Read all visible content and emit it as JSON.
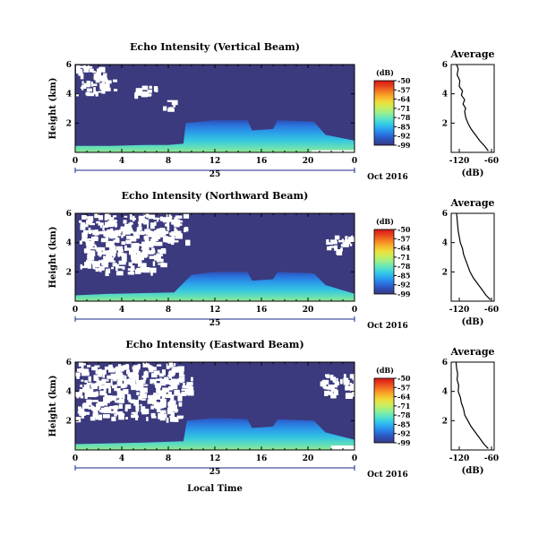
{
  "figure": {
    "bottom_xlabel": "Local Time",
    "date_label": "Oct 2016",
    "day_label": "25",
    "units_label": "(dB)",
    "avg_title": "Average",
    "avg_xlabel": "(dB)"
  },
  "colormap": [
    "#3b3a7e",
    "#2d4fb7",
    "#2a74e0",
    "#2aa2f0",
    "#35cde6",
    "#5fe6c0",
    "#98f08f",
    "#c9ee5e",
    "#eede3a",
    "#f7b02a",
    "#f57a22",
    "#e8431c",
    "#d01818"
  ],
  "chart_data": [
    {
      "type": "heatmap",
      "title": "Echo Intensity (Vertical Beam)",
      "ylabel": "Height (km)",
      "x_ticks": [
        "0",
        "4",
        "8",
        "12",
        "16",
        "20",
        "0"
      ],
      "y_ticks": [
        "2",
        "4",
        "6"
      ],
      "xlim": [
        0,
        24
      ],
      "ylim": [
        0,
        6
      ],
      "colorbar": {
        "ticks": [
          "-50",
          "-57",
          "-64",
          "-71",
          "-78",
          "-85",
          "-92",
          "-99"
        ],
        "range": [
          -99,
          -50
        ]
      },
      "gaps_top": [
        [
          0.0,
          2.5,
          4.0,
          6.0
        ],
        [
          2.2,
          3.5,
          4.3,
          5.0
        ],
        [
          5.0,
          7.5,
          4.0,
          4.6
        ],
        [
          7.5,
          8.5,
          3.0,
          3.6
        ]
      ],
      "gaps_bottom": [
        [
          20.3,
          24.0,
          0.0,
          0.15
        ]
      ],
      "echo_profile": [
        [
          0,
          0.45
        ],
        [
          3,
          0.45
        ],
        [
          6,
          0.5
        ],
        [
          8,
          0.5
        ],
        [
          9.3,
          0.6
        ],
        [
          9.5,
          2.0
        ],
        [
          12,
          2.2
        ],
        [
          14.8,
          2.2
        ],
        [
          15.2,
          1.5
        ],
        [
          17.0,
          1.6
        ],
        [
          17.4,
          2.2
        ],
        [
          20.5,
          2.1
        ],
        [
          21.5,
          1.2
        ],
        [
          24,
          0.8
        ]
      ],
      "avg_profile": {
        "x_ticks": [
          "-120",
          "-60"
        ],
        "y_ticks": [
          "2",
          "4",
          "6"
        ],
        "xlim": [
          -135,
          -55
        ],
        "ylim": [
          0,
          6
        ],
        "points": [
          [
            -66,
            0.1
          ],
          [
            -72,
            0.4
          ],
          [
            -82,
            0.8
          ],
          [
            -90,
            1.2
          ],
          [
            -98,
            1.6
          ],
          [
            -104,
            2.0
          ],
          [
            -108,
            2.4
          ],
          [
            -110,
            2.8
          ],
          [
            -108,
            3.0
          ],
          [
            -113,
            3.3
          ],
          [
            -110,
            3.6
          ],
          [
            -116,
            3.9
          ],
          [
            -114,
            4.2
          ],
          [
            -120,
            4.5
          ],
          [
            -119,
            4.9
          ],
          [
            -124,
            5.3
          ],
          [
            -122,
            5.7
          ],
          [
            -125,
            6.0
          ]
        ]
      }
    },
    {
      "type": "heatmap",
      "title": "Echo Intensity (Northward Beam)",
      "ylabel": "Height (km)",
      "x_ticks": [
        "0",
        "4",
        "8",
        "12",
        "16",
        "20",
        "0"
      ],
      "y_ticks": [
        "2",
        "4",
        "6"
      ],
      "xlim": [
        0,
        24
      ],
      "ylim": [
        0,
        6
      ],
      "colorbar": {
        "ticks": [
          "-50",
          "-57",
          "-64",
          "-71",
          "-78",
          "-85",
          "-92",
          "-99"
        ],
        "range": [
          -99,
          -50
        ]
      },
      "gaps_top": [
        [
          0.3,
          7.5,
          2.0,
          6.0
        ],
        [
          7.5,
          9.5,
          4.0,
          6.0
        ],
        [
          21.5,
          24.0,
          3.5,
          4.5
        ]
      ],
      "gaps_bottom": [],
      "echo_profile": [
        [
          0,
          0.4
        ],
        [
          3,
          0.5
        ],
        [
          6,
          0.55
        ],
        [
          8.5,
          0.6
        ],
        [
          10,
          1.8
        ],
        [
          12,
          2.0
        ],
        [
          14.8,
          2.0
        ],
        [
          15.2,
          1.4
        ],
        [
          17.0,
          1.5
        ],
        [
          17.4,
          2.0
        ],
        [
          20.5,
          1.9
        ],
        [
          21.5,
          1.1
        ],
        [
          24,
          0.5
        ]
      ],
      "avg_profile": {
        "x_ticks": [
          "-120",
          "-60"
        ],
        "y_ticks": [
          "2",
          "4",
          "6"
        ],
        "xlim": [
          -135,
          -55
        ],
        "ylim": [
          0,
          6
        ],
        "points": [
          [
            -62,
            0.1
          ],
          [
            -70,
            0.4
          ],
          [
            -78,
            0.8
          ],
          [
            -86,
            1.2
          ],
          [
            -94,
            1.6
          ],
          [
            -100,
            2.0
          ],
          [
            -104,
            2.4
          ],
          [
            -108,
            2.8
          ],
          [
            -112,
            3.2
          ],
          [
            -114,
            3.6
          ],
          [
            -118,
            4.0
          ],
          [
            -120,
            4.4
          ],
          [
            -122,
            4.8
          ],
          [
            -123,
            5.2
          ],
          [
            -124,
            5.6
          ],
          [
            -125,
            6.0
          ]
        ]
      }
    },
    {
      "type": "heatmap",
      "title": "Echo Intensity (Eastward Beam)",
      "ylabel": "Height (km)",
      "x_ticks": [
        "0",
        "4",
        "8",
        "12",
        "16",
        "20",
        "0"
      ],
      "y_ticks": [
        "2",
        "4",
        "6"
      ],
      "xlim": [
        0,
        24
      ],
      "ylim": [
        0,
        6
      ],
      "colorbar": {
        "ticks": [
          "-50",
          "-57",
          "-64",
          "-71",
          "-78",
          "-85",
          "-92",
          "-99"
        ],
        "range": [
          -99,
          -50
        ]
      },
      "gaps_top": [
        [
          0.0,
          9.0,
          2.2,
          6.0
        ],
        [
          9.0,
          10.0,
          3.5,
          5.0
        ],
        [
          21.0,
          24.0,
          3.8,
          5.2
        ]
      ],
      "gaps_bottom": [
        [
          22.0,
          24.0,
          0.0,
          0.3
        ]
      ],
      "echo_profile": [
        [
          0,
          0.4
        ],
        [
          3,
          0.45
        ],
        [
          6,
          0.5
        ],
        [
          9.3,
          0.6
        ],
        [
          9.6,
          2.0
        ],
        [
          12,
          2.2
        ],
        [
          14.8,
          2.1
        ],
        [
          15.2,
          1.5
        ],
        [
          17.0,
          1.6
        ],
        [
          17.4,
          2.1
        ],
        [
          20.5,
          2.0
        ],
        [
          21.5,
          1.2
        ],
        [
          24,
          0.7
        ]
      ],
      "avg_profile": {
        "x_ticks": [
          "-120",
          "-60"
        ],
        "y_ticks": [
          "2",
          "4",
          "6"
        ],
        "xlim": [
          -135,
          -55
        ],
        "ylim": [
          0,
          6
        ],
        "points": [
          [
            -66,
            0.1
          ],
          [
            -74,
            0.4
          ],
          [
            -82,
            0.8
          ],
          [
            -90,
            1.2
          ],
          [
            -98,
            1.6
          ],
          [
            -104,
            2.0
          ],
          [
            -110,
            2.4
          ],
          [
            -112,
            2.8
          ],
          [
            -116,
            3.2
          ],
          [
            -118,
            3.6
          ],
          [
            -122,
            4.0
          ],
          [
            -121,
            4.4
          ],
          [
            -124,
            4.8
          ],
          [
            -123,
            5.2
          ],
          [
            -125,
            5.6
          ],
          [
            -126,
            6.0
          ]
        ]
      }
    }
  ]
}
